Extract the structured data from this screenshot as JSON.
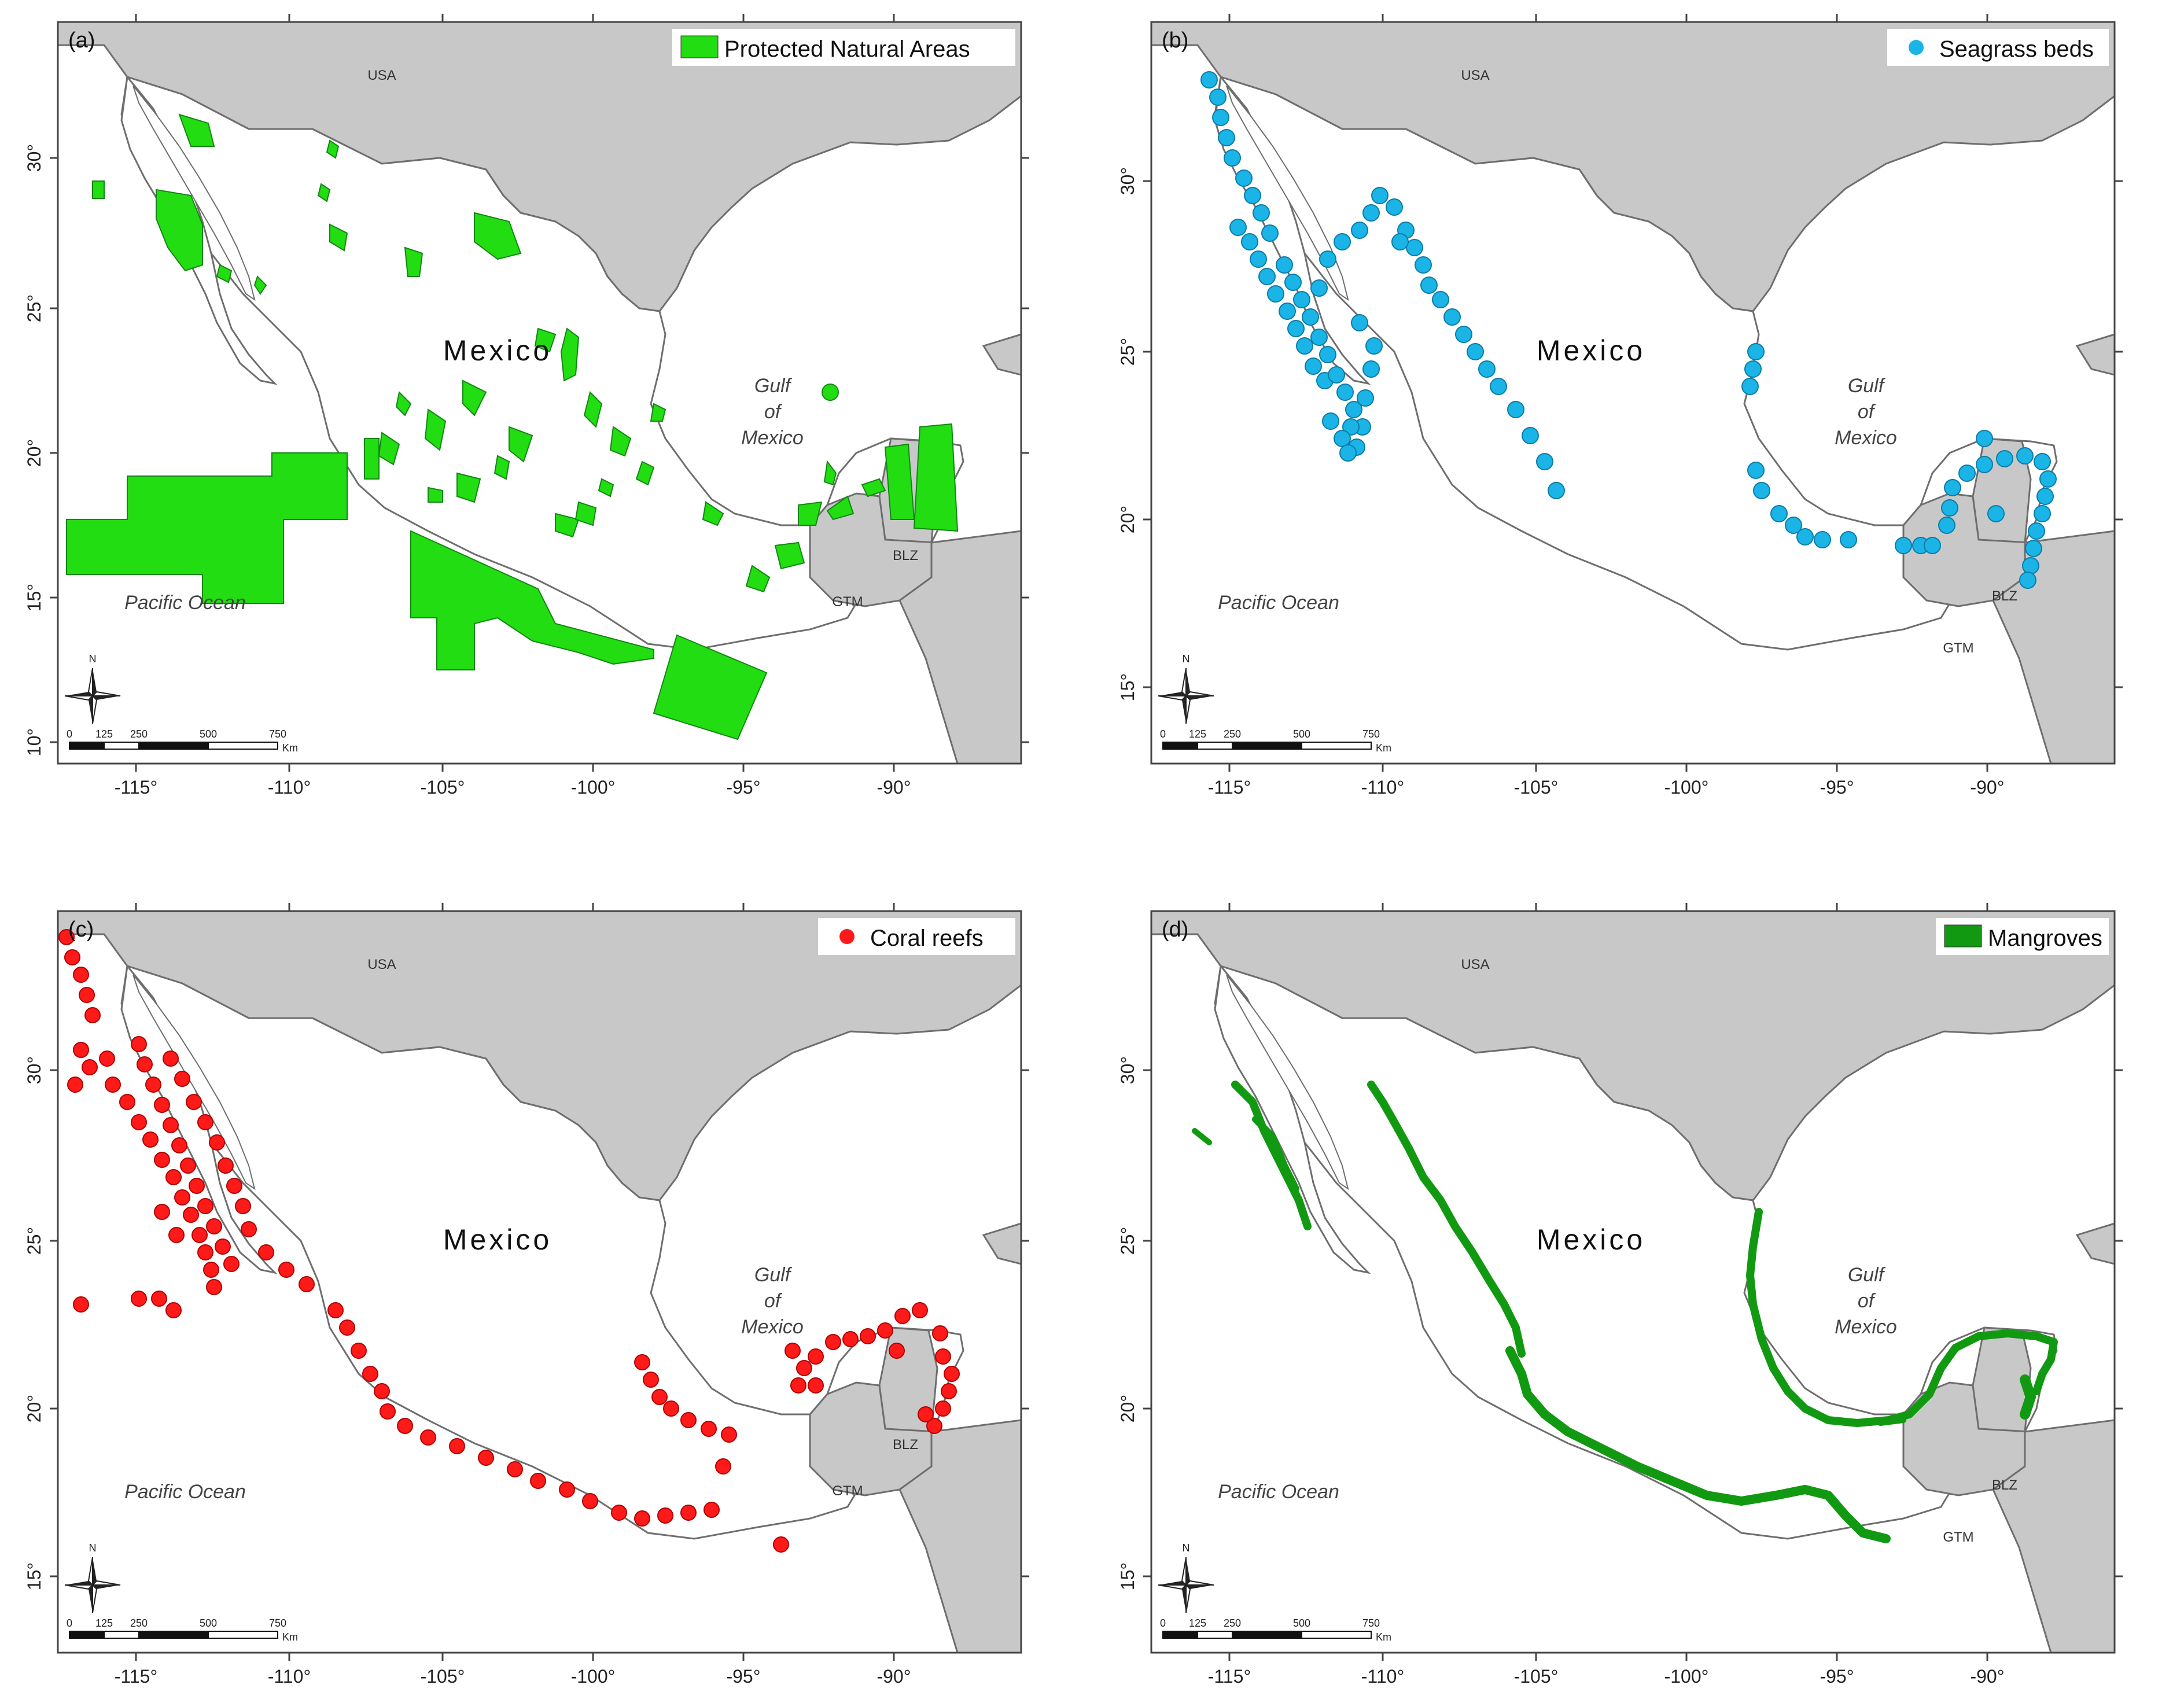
{
  "colors": {
    "land_neighbor": "#c8c8c8",
    "border": "#6e6e6e",
    "ocean": "#ffffff",
    "pna": "#22dd11",
    "seagrass": "#1ab4e6",
    "coral": "#ff1a1a",
    "mangrove": "#119911"
  },
  "panels": [
    {
      "id": "a",
      "tag": "(a)",
      "legend": "Protected Natural Areas",
      "legend_symbol": "square",
      "layer": "pna",
      "x_ticks": [
        "-115°",
        "-110°",
        "-105°",
        "-100°",
        "-95°",
        "-90°"
      ],
      "y_ticks": [
        "10°",
        "15°",
        "20°",
        "25°",
        "30°"
      ]
    },
    {
      "id": "b",
      "tag": "(b)",
      "legend": "Seagrass beds",
      "legend_symbol": "dot",
      "layer": "seagrass",
      "x_ticks": [
        "-115°",
        "-110°",
        "-105°",
        "-100°",
        "-95°",
        "-90°"
      ],
      "y_ticks": [
        "15°",
        "20°",
        "25°",
        "30°"
      ]
    },
    {
      "id": "c",
      "tag": "(c)",
      "legend": "Coral reefs",
      "legend_symbol": "dot",
      "layer": "coral",
      "x_ticks": [
        "-115°",
        "-110°",
        "-105°",
        "-100°",
        "-95°",
        "-90°"
      ],
      "y_ticks": [
        "15°",
        "20°",
        "25°",
        "30°"
      ]
    },
    {
      "id": "d",
      "tag": "(d)",
      "legend": "Mangroves",
      "legend_symbol": "square",
      "layer": "mangrove",
      "x_ticks": [
        "-115°",
        "-110°",
        "-105°",
        "-100°",
        "-95°",
        "-90°"
      ],
      "y_ticks": [
        "15°",
        "20°",
        "25°",
        "30°"
      ]
    }
  ],
  "map_labels": {
    "usa": "USA",
    "mexico": "Mexico",
    "gulf": [
      "Gulf",
      "of",
      "Mexico"
    ],
    "pacific": "Pacific Ocean",
    "blz": "BLZ",
    "gtm": "GTM",
    "north": "N"
  },
  "scale_bar": {
    "ticks": [
      "0",
      "125",
      "250",
      "500",
      "750"
    ],
    "unit": "Km"
  }
}
